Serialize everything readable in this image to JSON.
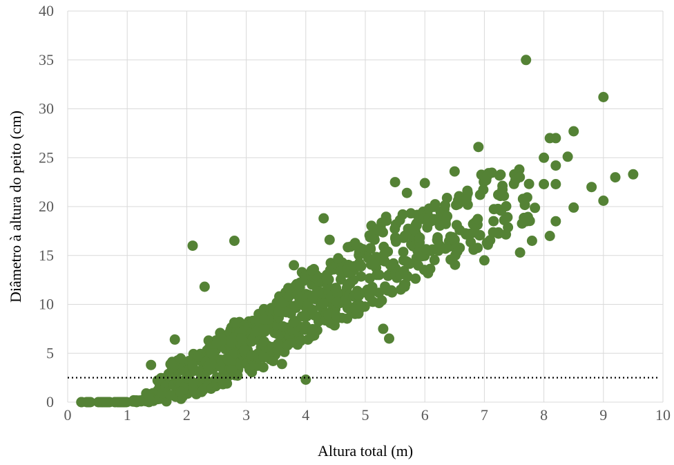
{
  "chart_data": {
    "type": "scatter",
    "xlabel": "Altura total (m)",
    "ylabel": "Diâmetro à altura do peito (cm)",
    "xlim": [
      0,
      10
    ],
    "ylim": [
      0,
      40
    ],
    "x_ticks": [
      "0",
      "1",
      "2",
      "3",
      "4",
      "5",
      "6",
      "7",
      "8",
      "9",
      "10"
    ],
    "y_ticks": [
      "0",
      "5",
      "10",
      "15",
      "20",
      "25",
      "30",
      "35",
      "40"
    ],
    "grid": true,
    "marker_color": "#548235",
    "reference_line": {
      "y": 2.5,
      "style": "dotted",
      "color": "#000000"
    },
    "notable_points": [
      {
        "x": 7.7,
        "y": 35.0
      },
      {
        "x": 9.0,
        "y": 31.2
      },
      {
        "x": 9.5,
        "y": 23.3
      },
      {
        "x": 9.2,
        "y": 23.0
      },
      {
        "x": 9.0,
        "y": 20.6
      },
      {
        "x": 8.8,
        "y": 22.0
      },
      {
        "x": 8.5,
        "y": 27.7
      },
      {
        "x": 8.5,
        "y": 19.9
      },
      {
        "x": 8.4,
        "y": 25.1
      },
      {
        "x": 8.2,
        "y": 27.0
      },
      {
        "x": 8.1,
        "y": 27.0
      },
      {
        "x": 8.2,
        "y": 24.2
      },
      {
        "x": 8.2,
        "y": 22.3
      },
      {
        "x": 8.2,
        "y": 18.5
      },
      {
        "x": 8.1,
        "y": 17.0
      },
      {
        "x": 8.0,
        "y": 25.0
      },
      {
        "x": 8.0,
        "y": 22.3
      },
      {
        "x": 6.9,
        "y": 26.1
      },
      {
        "x": 6.5,
        "y": 23.6
      },
      {
        "x": 6.0,
        "y": 22.4
      },
      {
        "x": 5.5,
        "y": 22.5
      },
      {
        "x": 5.7,
        "y": 21.4
      },
      {
        "x": 4.3,
        "y": 18.8
      },
      {
        "x": 4.4,
        "y": 16.6
      },
      {
        "x": 2.1,
        "y": 16.0
      },
      {
        "x": 2.8,
        "y": 16.5
      },
      {
        "x": 2.3,
        "y": 11.8
      },
      {
        "x": 3.8,
        "y": 14.0
      },
      {
        "x": 4.0,
        "y": 2.3
      },
      {
        "x": 5.4,
        "y": 6.5
      },
      {
        "x": 5.3,
        "y": 7.5
      },
      {
        "x": 3.6,
        "y": 3.9
      },
      {
        "x": 1.8,
        "y": 6.4
      },
      {
        "x": 1.4,
        "y": 3.8
      },
      {
        "x": 7.6,
        "y": 15.3
      },
      {
        "x": 7.8,
        "y": 16.5
      },
      {
        "x": 7.0,
        "y": 14.5
      }
    ],
    "trend_bands": [
      {
        "x": 0.3,
        "y_min": 0.0,
        "y_max": 0.0,
        "count": 10
      },
      {
        "x": 0.6,
        "y_min": 0.0,
        "y_max": 0.0,
        "count": 16
      },
      {
        "x": 0.9,
        "y_min": 0.0,
        "y_max": 0.0,
        "count": 18
      },
      {
        "x": 1.2,
        "y_min": 0.0,
        "y_max": 0.2,
        "count": 18
      },
      {
        "x": 1.4,
        "y_min": 0.0,
        "y_max": 1.0,
        "count": 18
      },
      {
        "x": 1.6,
        "y_min": 0.0,
        "y_max": 2.5,
        "count": 20
      },
      {
        "x": 1.8,
        "y_min": 0.2,
        "y_max": 4.3,
        "count": 26
      },
      {
        "x": 2.0,
        "y_min": 0.4,
        "y_max": 4.5,
        "count": 30
      },
      {
        "x": 2.2,
        "y_min": 0.8,
        "y_max": 5.0,
        "count": 32
      },
      {
        "x": 2.4,
        "y_min": 1.2,
        "y_max": 6.5,
        "count": 34
      },
      {
        "x": 2.6,
        "y_min": 1.8,
        "y_max": 7.2,
        "count": 36
      },
      {
        "x": 2.8,
        "y_min": 2.6,
        "y_max": 8.2,
        "count": 36
      },
      {
        "x": 3.0,
        "y_min": 3.0,
        "y_max": 8.5,
        "count": 36
      },
      {
        "x": 3.2,
        "y_min": 3.5,
        "y_max": 9.2,
        "count": 34
      },
      {
        "x": 3.4,
        "y_min": 4.2,
        "y_max": 10.0,
        "count": 34
      },
      {
        "x": 3.6,
        "y_min": 5.0,
        "y_max": 11.5,
        "count": 32
      },
      {
        "x": 3.8,
        "y_min": 5.5,
        "y_max": 12.5,
        "count": 32
      },
      {
        "x": 4.0,
        "y_min": 6.0,
        "y_max": 13.5,
        "count": 32
      },
      {
        "x": 4.2,
        "y_min": 6.8,
        "y_max": 14.0,
        "count": 30
      },
      {
        "x": 4.4,
        "y_min": 7.5,
        "y_max": 14.5,
        "count": 28
      },
      {
        "x": 4.6,
        "y_min": 8.0,
        "y_max": 15.0,
        "count": 26
      },
      {
        "x": 4.8,
        "y_min": 9.0,
        "y_max": 16.5,
        "count": 24
      },
      {
        "x": 5.0,
        "y_min": 9.5,
        "y_max": 17.5,
        "count": 24
      },
      {
        "x": 5.2,
        "y_min": 10.0,
        "y_max": 18.5,
        "count": 22
      },
      {
        "x": 5.4,
        "y_min": 10.5,
        "y_max": 19.0,
        "count": 20
      },
      {
        "x": 5.6,
        "y_min": 11.5,
        "y_max": 19.5,
        "count": 20
      },
      {
        "x": 5.8,
        "y_min": 12.5,
        "y_max": 20.0,
        "count": 18
      },
      {
        "x": 6.0,
        "y_min": 13.0,
        "y_max": 20.5,
        "count": 18
      },
      {
        "x": 6.2,
        "y_min": 13.5,
        "y_max": 21.0,
        "count": 16
      },
      {
        "x": 6.4,
        "y_min": 14.0,
        "y_max": 21.5,
        "count": 16
      },
      {
        "x": 6.6,
        "y_min": 15.0,
        "y_max": 22.0,
        "count": 14
      },
      {
        "x": 6.8,
        "y_min": 15.5,
        "y_max": 22.5,
        "count": 14
      },
      {
        "x": 7.0,
        "y_min": 16.0,
        "y_max": 23.5,
        "count": 12
      },
      {
        "x": 7.2,
        "y_min": 16.5,
        "y_max": 23.5,
        "count": 12
      },
      {
        "x": 7.4,
        "y_min": 17.0,
        "y_max": 23.8,
        "count": 10
      },
      {
        "x": 7.6,
        "y_min": 18.0,
        "y_max": 24.0,
        "count": 8
      },
      {
        "x": 7.8,
        "y_min": 18.5,
        "y_max": 22.5,
        "count": 6
      }
    ]
  }
}
